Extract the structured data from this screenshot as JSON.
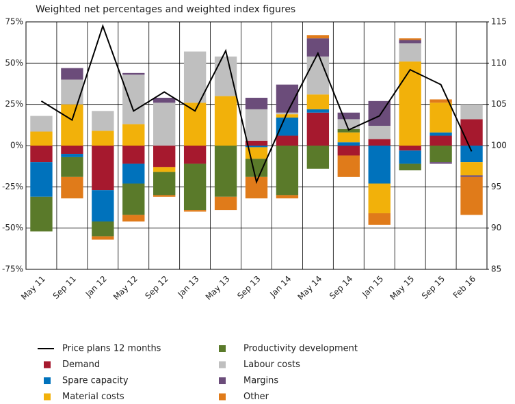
{
  "chart_data": {
    "type": "bar",
    "title": "Weighted net percentages and weighted index figures",
    "categories": [
      "May 11",
      "Sep 11",
      "Jan 12",
      "May 12",
      "Sep 12",
      "Jan 13",
      "May 13",
      "Sep 13",
      "Jan 14",
      "May 14",
      "Sep 14",
      "Jan 15",
      "May 15",
      "Sep 15",
      "Feb 16"
    ],
    "series": [
      {
        "name": "Price plans 12 months",
        "type": "line",
        "axis": "y2",
        "color": "#000000",
        "values": [
          105.4,
          103.1,
          114.5,
          104.2,
          106.5,
          104.2,
          111.5,
          95.6,
          104.0,
          111.2,
          101.9,
          103.6,
          109.2,
          107.4,
          99.3
        ]
      },
      {
        "name": "Demand",
        "color": "#a6192e",
        "values": [
          -10,
          -5,
          -27,
          -11,
          -13,
          -11,
          0,
          3,
          6,
          20,
          -6,
          4,
          -3,
          6,
          16
        ]
      },
      {
        "name": "Spare capacity",
        "color": "#0072bc",
        "values": [
          -21,
          -2,
          -19,
          -12,
          0,
          0,
          0,
          -1,
          11,
          2,
          2,
          -23,
          -8,
          2,
          -10
        ]
      },
      {
        "name": "Material costs",
        "color": "#f2b10a",
        "values": [
          8.5,
          25,
          9,
          13,
          -3,
          26,
          30,
          -7,
          2,
          9,
          6,
          -18,
          51,
          18,
          -8
        ]
      },
      {
        "name": "Productivity development",
        "color": "#5a7a2a",
        "values": [
          -21,
          -12,
          -9,
          -19,
          -14,
          -28,
          -31,
          -11,
          -30,
          -14,
          2,
          0,
          -4,
          -10,
          0
        ]
      },
      {
        "name": "Labour costs",
        "color": "#bfbfbf",
        "values": [
          9.5,
          15,
          12,
          30,
          26,
          31,
          24,
          19,
          1,
          23,
          6,
          8,
          11,
          0,
          9
        ]
      },
      {
        "name": "Margins",
        "color": "#6b4c7a",
        "values": [
          0,
          7,
          0,
          1,
          3,
          0,
          0,
          7,
          17,
          11,
          4,
          15,
          2,
          -1,
          -1
        ]
      },
      {
        "name": "Other",
        "color": "#e07b1a",
        "values": [
          0,
          -13,
          -2,
          -4,
          -1,
          -1,
          -8,
          -13,
          -2,
          2,
          -13,
          -7,
          1,
          2,
          -23
        ]
      }
    ],
    "ylim": [
      -75,
      75
    ],
    "yticks": [
      {
        "value": -75,
        "label": "-75%"
      },
      {
        "value": -50,
        "label": "-50%"
      },
      {
        "value": -25,
        "label": "-25%"
      },
      {
        "value": 0,
        "label": "0%"
      },
      {
        "value": 25,
        "label": "25%"
      },
      {
        "value": 50,
        "label": "50%"
      },
      {
        "value": 75,
        "label": "75%"
      }
    ],
    "y2lim": [
      85,
      115
    ],
    "y2ticks": [
      85,
      90,
      95,
      100,
      105,
      110,
      115
    ],
    "grid": true
  }
}
